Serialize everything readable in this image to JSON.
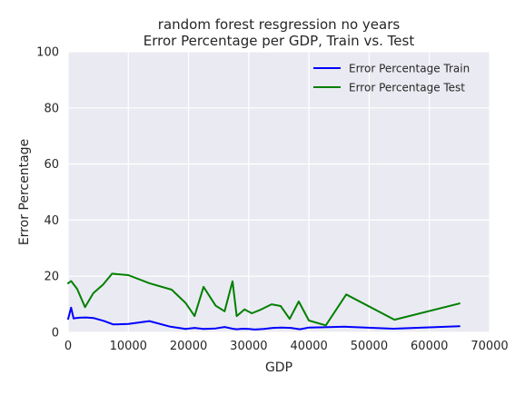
{
  "chart_data": {
    "type": "line",
    "title": "random forest resgression no years",
    "subtitle": "Error Percentage per GDP, Train vs. Test",
    "xlabel": "GDP",
    "ylabel": "Error Percentage",
    "xlim": [
      0,
      70000
    ],
    "ylim": [
      0,
      100
    ],
    "xticks": [
      0,
      10000,
      20000,
      30000,
      40000,
      50000,
      60000,
      70000
    ],
    "yticks": [
      0,
      20,
      40,
      60,
      80,
      100
    ],
    "grid": true,
    "legend_position": "top-right",
    "series": [
      {
        "name": "Error Percentage Train",
        "color": "#0000ff",
        "x": [
          0,
          500,
          900,
          1800,
          3000,
          4200,
          6000,
          7500,
          10000,
          13500,
          17000,
          19500,
          21000,
          22500,
          24500,
          26000,
          27300,
          28000,
          29000,
          30000,
          31000,
          32500,
          34000,
          35500,
          37000,
          38500,
          40000,
          42500,
          46000,
          54000,
          65000
        ],
        "y": [
          4.8,
          8.8,
          5.0,
          5.2,
          5.3,
          5.1,
          4.0,
          2.8,
          3.0,
          4.0,
          2.0,
          1.2,
          1.6,
          1.2,
          1.4,
          1.9,
          1.3,
          1.1,
          1.3,
          1.2,
          1.0,
          1.2,
          1.6,
          1.7,
          1.6,
          1.1,
          1.7,
          1.8,
          2.0,
          1.3,
          2.2
        ]
      },
      {
        "name": "Error Percentage Test",
        "color": "#008000",
        "x": [
          0,
          500,
          1500,
          2800,
          4200,
          5800,
          7300,
          10000,
          13500,
          17200,
          19500,
          21000,
          22500,
          24500,
          26000,
          27300,
          28000,
          29300,
          30500,
          31800,
          33800,
          35300,
          36800,
          38300,
          40000,
          42800,
          46200,
          54200,
          65000
        ],
        "y": [
          17.5,
          18.3,
          15.5,
          9.0,
          14.0,
          17.0,
          20.9,
          20.4,
          17.5,
          15.2,
          10.5,
          5.8,
          16.2,
          9.5,
          7.5,
          18.2,
          5.8,
          8.2,
          6.8,
          7.9,
          10.0,
          9.4,
          4.8,
          11.0,
          4.2,
          2.5,
          13.5,
          4.5,
          10.3
        ]
      }
    ]
  }
}
